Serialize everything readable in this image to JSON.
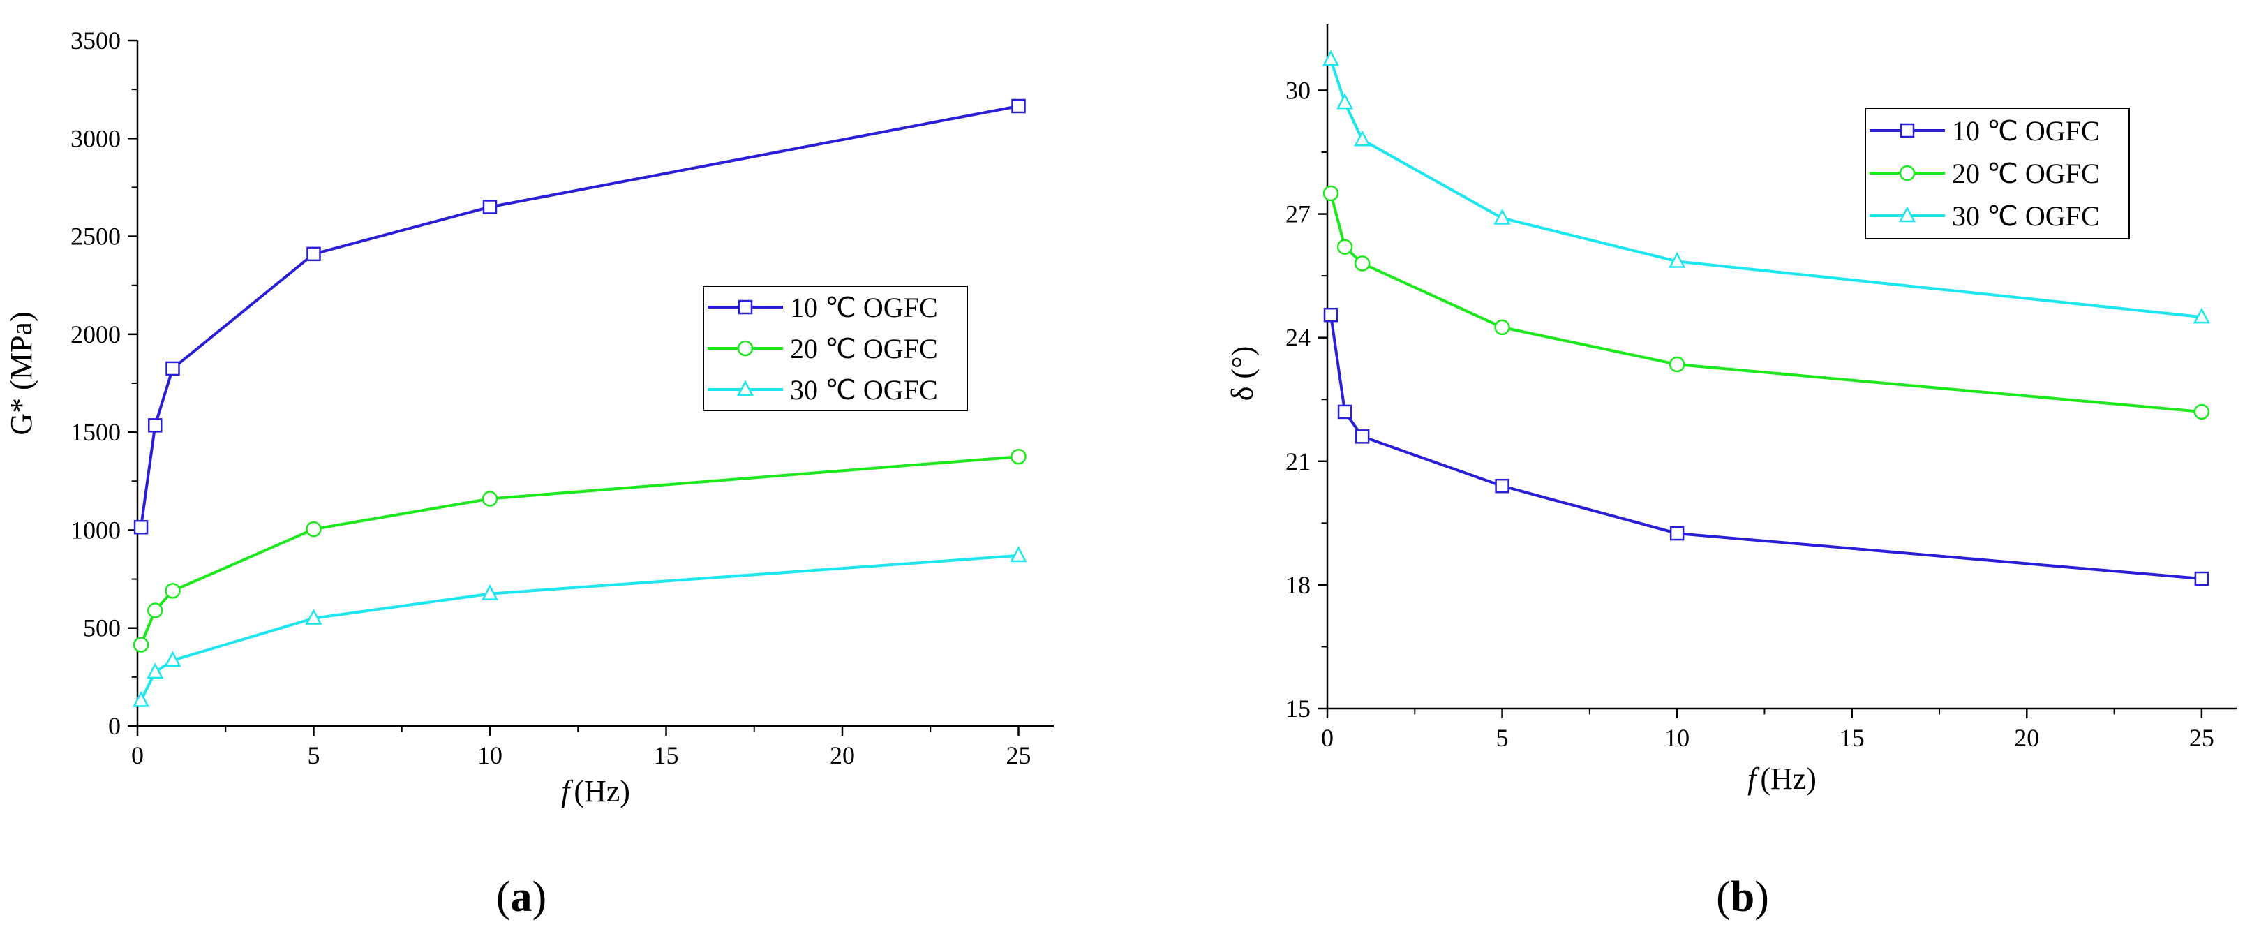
{
  "chart_data": [
    {
      "type": "line",
      "panel_label": "(a)",
      "panel_letter": "a",
      "xlabel_italic": "f",
      "xlabel_unit": "(Hz)",
      "ylabel": "G* (MPa)",
      "xlim": [
        0,
        26
      ],
      "ylim": [
        0,
        3500
      ],
      "xticks": [
        0,
        5,
        10,
        15,
        20,
        25
      ],
      "yticks": [
        0,
        500,
        1000,
        1500,
        2000,
        2500,
        3000,
        3500
      ],
      "legend_position": "center-right",
      "x": [
        0.1,
        0.5,
        1,
        5,
        10,
        25
      ],
      "series": [
        {
          "name": "10 ℃ OGFC",
          "marker": "square",
          "color": "#2a1ed6",
          "values": [
            1015,
            1535,
            1825,
            2410,
            2650,
            3165
          ]
        },
        {
          "name": "20 ℃ OGFC",
          "marker": "circle",
          "color": "#1de81d",
          "values": [
            415,
            590,
            690,
            1005,
            1160,
            1375
          ]
        },
        {
          "name": "30 ℃ OGFC",
          "marker": "triangle",
          "color": "#1ee6ee",
          "values": [
            130,
            275,
            335,
            550,
            675,
            870
          ]
        }
      ]
    },
    {
      "type": "line",
      "panel_label": "(b)",
      "panel_letter": "b",
      "xlabel_italic": "f",
      "xlabel_unit": "(Hz)",
      "ylabel": "δ (°)",
      "xlim": [
        0,
        26
      ],
      "ylim": [
        15,
        31.6
      ],
      "xticks": [
        0,
        5,
        10,
        15,
        20,
        25
      ],
      "yticks": [
        15,
        18,
        21,
        24,
        27,
        30
      ],
      "legend_position": "top-right",
      "x": [
        0.1,
        0.5,
        1,
        5,
        10,
        25
      ],
      "series": [
        {
          "name": "10 ℃ OGFC",
          "marker": "square",
          "color": "#2a1ed6",
          "values": [
            24.55,
            22.2,
            21.6,
            20.4,
            19.25,
            18.15
          ]
        },
        {
          "name": "20 ℃ OGFC",
          "marker": "circle",
          "color": "#1de81d",
          "values": [
            27.5,
            26.2,
            25.8,
            24.25,
            23.35,
            22.2
          ]
        },
        {
          "name": "30 ℃ OGFC",
          "marker": "triangle",
          "color": "#1ee6ee",
          "values": [
            30.75,
            29.7,
            28.8,
            26.9,
            25.85,
            24.5
          ]
        }
      ]
    }
  ]
}
